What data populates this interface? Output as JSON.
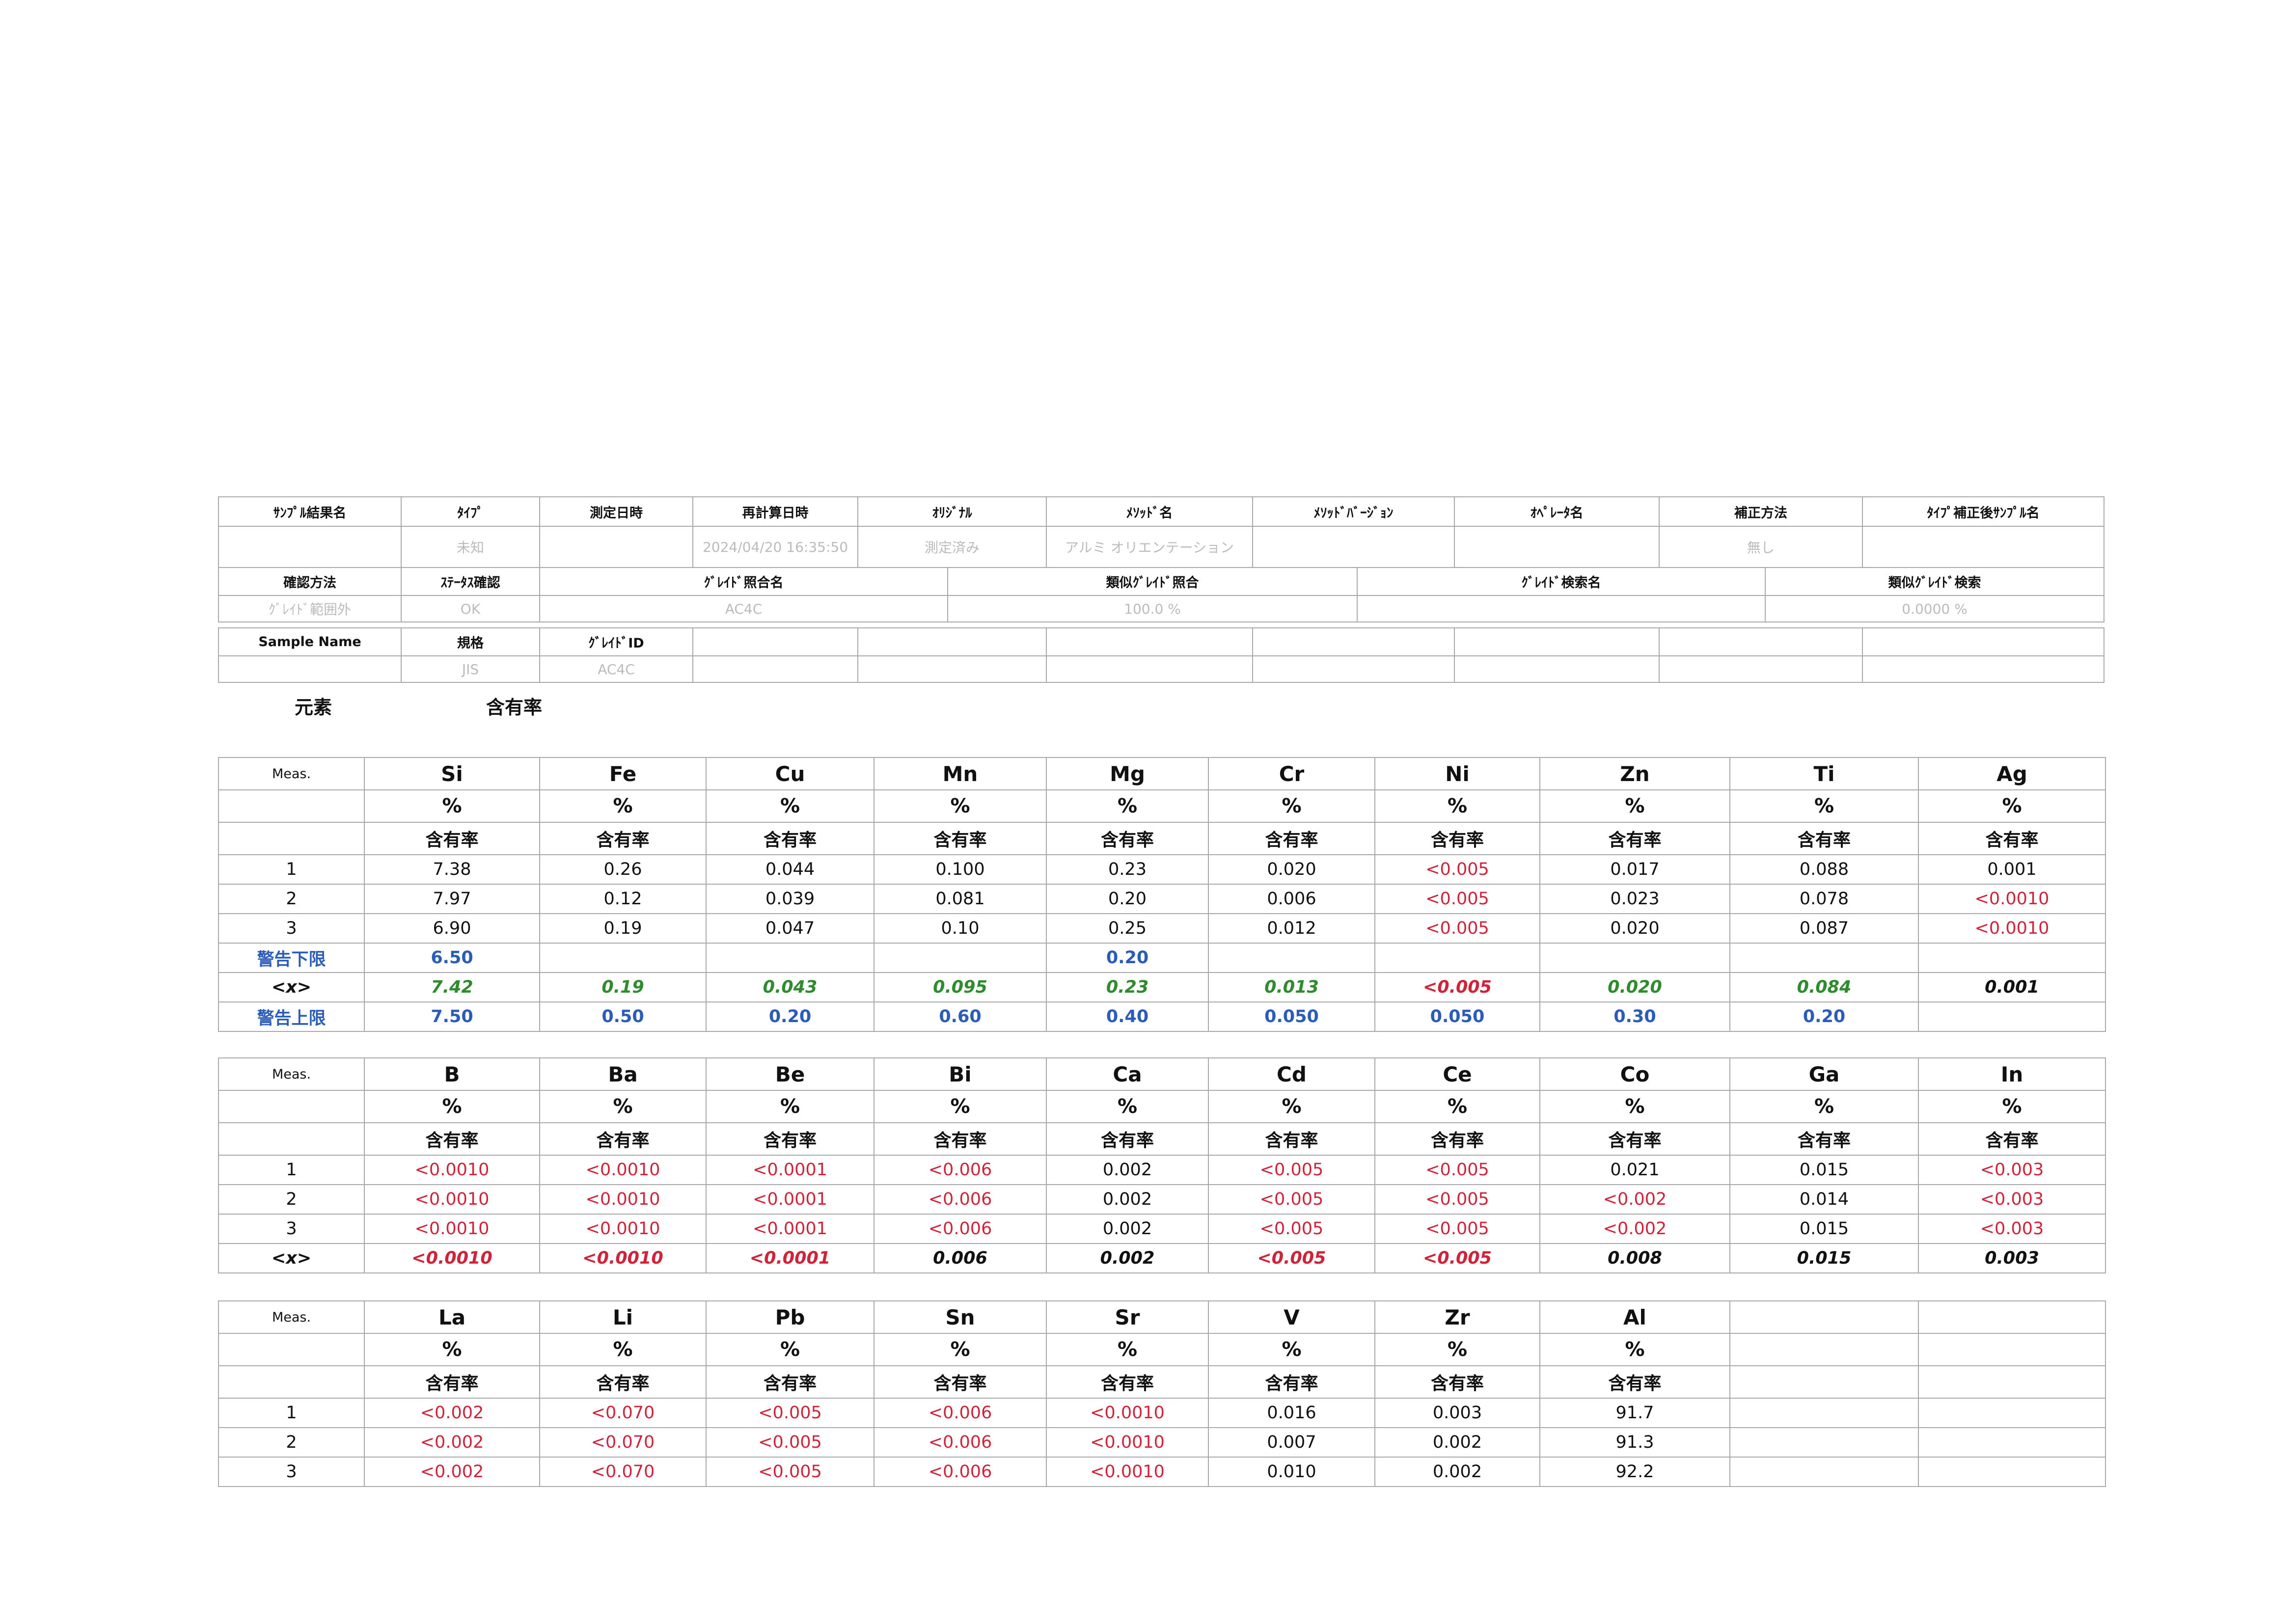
{
  "header_tables": [
    {
      "headers": [
        "ｻﾝﾌﾟﾙ結果名",
        "ﾀｲﾌﾟ",
        "測定日時",
        "再計算日時",
        "ｵﾘｼﾞﾅﾙ",
        "ﾒｿｯﾄﾞ名",
        "ﾒｿｯﾄﾞﾊﾞｰｼﾞｮﾝ",
        "ｵﾍﾟﾚｰﾀ名",
        "補正方法",
        "ﾀｲﾌﾟ補正後ｻﾝﾌﾟﾙ名"
      ],
      "values": [
        null,
        "未知",
        null,
        "2024/04/20 16:35:50",
        "測定済み",
        "アルミ オリエンテーション",
        null,
        null,
        "無し",
        null
      ]
    },
    {
      "headers": [
        "確認方法",
        "ｽﾃｰﾀｽ確認",
        "ｸﾞﾚｲﾄﾞ照合名",
        "類似ｸﾞﾚｲﾄﾞ照合",
        "ｸﾞﾚｲﾄﾞ検索名",
        "類似ｸﾞﾚｲﾄﾞ検索"
      ],
      "values": [
        "ｸﾞﾚｲﾄﾞ範囲外",
        "OK",
        "AC4C",
        "100.0 %",
        null,
        "0.0000 %"
      ]
    },
    {
      "headers": [
        "Sample Name",
        "規格",
        "ｸﾞﾚｲﾄﾞID"
      ],
      "values": [
        null,
        "JIS",
        "AC4C"
      ]
    }
  ],
  "section_labels": {
    "element": "元素",
    "content": "含有率"
  },
  "element_tables": [
    {
      "meas": "Meas.",
      "meas_numbers": [
        "1",
        "2",
        "3"
      ],
      "lower_label": "警告下限",
      "mean_label": "<x>",
      "upper_label": "警告上限",
      "columns": [
        {
          "element": "Si",
          "unit": "%",
          "label": "含有率",
          "values": [
            "7.38",
            "7.97",
            "6.90"
          ],
          "lower": "6.50",
          "mean": "7.42",
          "upper": "7.50",
          "mean_color": "#2e8b2e"
        },
        {
          "element": "Fe",
          "unit": "%",
          "label": "含有率",
          "values": [
            "0.26",
            "0.12",
            "0.19"
          ],
          "lower": null,
          "mean": "0.19",
          "upper": "0.50",
          "mean_color": "#2e8b2e"
        },
        {
          "element": "Cu",
          "unit": "%",
          "label": "含有率",
          "values": [
            "0.044",
            "0.039",
            "0.047"
          ],
          "lower": null,
          "mean": "0.043",
          "upper": "0.20",
          "mean_color": "#2e8b2e"
        },
        {
          "element": "Mn",
          "unit": "%",
          "label": "含有率",
          "values": [
            "0.100",
            "0.081",
            "0.10"
          ],
          "lower": null,
          "mean": "0.095",
          "upper": "0.60",
          "mean_color": "#2e8b2e"
        },
        {
          "element": "Mg",
          "unit": "%",
          "label": "含有率",
          "values": [
            "0.23",
            "0.20",
            "0.25"
          ],
          "lower": "0.20",
          "mean": "0.23",
          "upper": "0.40",
          "mean_color": "#2e8b2e"
        },
        {
          "element": "Cr",
          "unit": "%",
          "label": "含有率",
          "values": [
            "0.020",
            "0.006",
            "0.012"
          ],
          "lower": null,
          "mean": "0.013",
          "upper": "0.050",
          "mean_color": "#2e8b2e"
        },
        {
          "element": "Ni",
          "unit": "%",
          "label": "含有率",
          "values": [
            "<0.005",
            "<0.005",
            "<0.005"
          ],
          "lower": null,
          "mean": "<0.005",
          "upper": "0.050",
          "mean_color": "#d0233a"
        },
        {
          "element": "Zn",
          "unit": "%",
          "label": "含有率",
          "values": [
            "0.017",
            "0.023",
            "0.020"
          ],
          "lower": null,
          "mean": "0.020",
          "upper": "0.30",
          "mean_color": "#2e8b2e"
        },
        {
          "element": "Ti",
          "unit": "%",
          "label": "含有率",
          "values": [
            "0.088",
            "0.078",
            "0.087"
          ],
          "lower": null,
          "mean": "0.084",
          "upper": "0.20",
          "mean_color": "#2e8b2e"
        },
        {
          "element": "Ag",
          "unit": "%",
          "label": "含有率",
          "values": [
            "0.001",
            "<0.0010",
            "<0.0010"
          ],
          "lower": null,
          "mean": "0.001",
          "upper": null,
          "mean_color": "#111111"
        }
      ]
    },
    {
      "meas": "Meas.",
      "meas_numbers": [
        "1",
        "2",
        "3"
      ],
      "mean_label": "<x>",
      "columns": [
        {
          "element": "B",
          "unit": "%",
          "label": "含有率",
          "values": [
            "<0.0010",
            "<0.0010",
            "<0.0010"
          ],
          "mean": "<0.0010",
          "mean_color": "#d0233a"
        },
        {
          "element": "Ba",
          "unit": "%",
          "label": "含有率",
          "values": [
            "<0.0010",
            "<0.0010",
            "<0.0010"
          ],
          "mean": "<0.0010",
          "mean_color": "#d0233a"
        },
        {
          "element": "Be",
          "unit": "%",
          "label": "含有率",
          "values": [
            "<0.0001",
            "<0.0001",
            "<0.0001"
          ],
          "mean": "<0.0001",
          "mean_color": "#d0233a"
        },
        {
          "element": "Bi",
          "unit": "%",
          "label": "含有率",
          "values": [
            "<0.006",
            "<0.006",
            "<0.006"
          ],
          "mean": "0.006",
          "mean_color": "#111111"
        },
        {
          "element": "Ca",
          "unit": "%",
          "label": "含有率",
          "values": [
            "0.002",
            "0.002",
            "0.002"
          ],
          "mean": "0.002",
          "mean_color": "#111111"
        },
        {
          "element": "Cd",
          "unit": "%",
          "label": "含有率",
          "values": [
            "<0.005",
            "<0.005",
            "<0.005"
          ],
          "mean": "<0.005",
          "mean_color": "#d0233a"
        },
        {
          "element": "Ce",
          "unit": "%",
          "label": "含有率",
          "values": [
            "<0.005",
            "<0.005",
            "<0.005"
          ],
          "mean": "<0.005",
          "mean_color": "#d0233a"
        },
        {
          "element": "Co",
          "unit": "%",
          "label": "含有率",
          "values": [
            "0.021",
            "<0.002",
            "<0.002"
          ],
          "mean": "0.008",
          "mean_color": "#111111"
        },
        {
          "element": "Ga",
          "unit": "%",
          "label": "含有率",
          "values": [
            "0.015",
            "0.014",
            "0.015"
          ],
          "mean": "0.015",
          "mean_color": "#111111"
        },
        {
          "element": "In",
          "unit": "%",
          "label": "含有率",
          "values": [
            "<0.003",
            "<0.003",
            "<0.003"
          ],
          "mean": "0.003",
          "mean_color": "#111111"
        }
      ]
    },
    {
      "meas": "Meas.",
      "meas_numbers": [
        "1",
        "2",
        "3"
      ],
      "columns": [
        {
          "element": "La",
          "unit": "%",
          "label": "含有率",
          "values": [
            "<0.002",
            "<0.002",
            "<0.002"
          ]
        },
        {
          "element": "Li",
          "unit": "%",
          "label": "含有率",
          "values": [
            "<0.070",
            "<0.070",
            "<0.070"
          ]
        },
        {
          "element": "Pb",
          "unit": "%",
          "label": "含有率",
          "values": [
            "<0.005",
            "<0.005",
            "<0.005"
          ]
        },
        {
          "element": "Sn",
          "unit": "%",
          "label": "含有率",
          "values": [
            "<0.006",
            "<0.006",
            "<0.006"
          ]
        },
        {
          "element": "Sr",
          "unit": "%",
          "label": "含有率",
          "values": [
            "<0.0010",
            "<0.0010",
            "<0.0010"
          ]
        },
        {
          "element": "V",
          "unit": "%",
          "label": "含有率",
          "values": [
            "0.016",
            "0.007",
            "0.010"
          ]
        },
        {
          "element": "Zr",
          "unit": "%",
          "label": "含有率",
          "values": [
            "0.003",
            "0.002",
            "0.002"
          ]
        },
        {
          "element": "Al",
          "unit": "%",
          "label": "含有率",
          "values": [
            "91.7",
            "91.3",
            "92.2"
          ]
        }
      ]
    }
  ]
}
